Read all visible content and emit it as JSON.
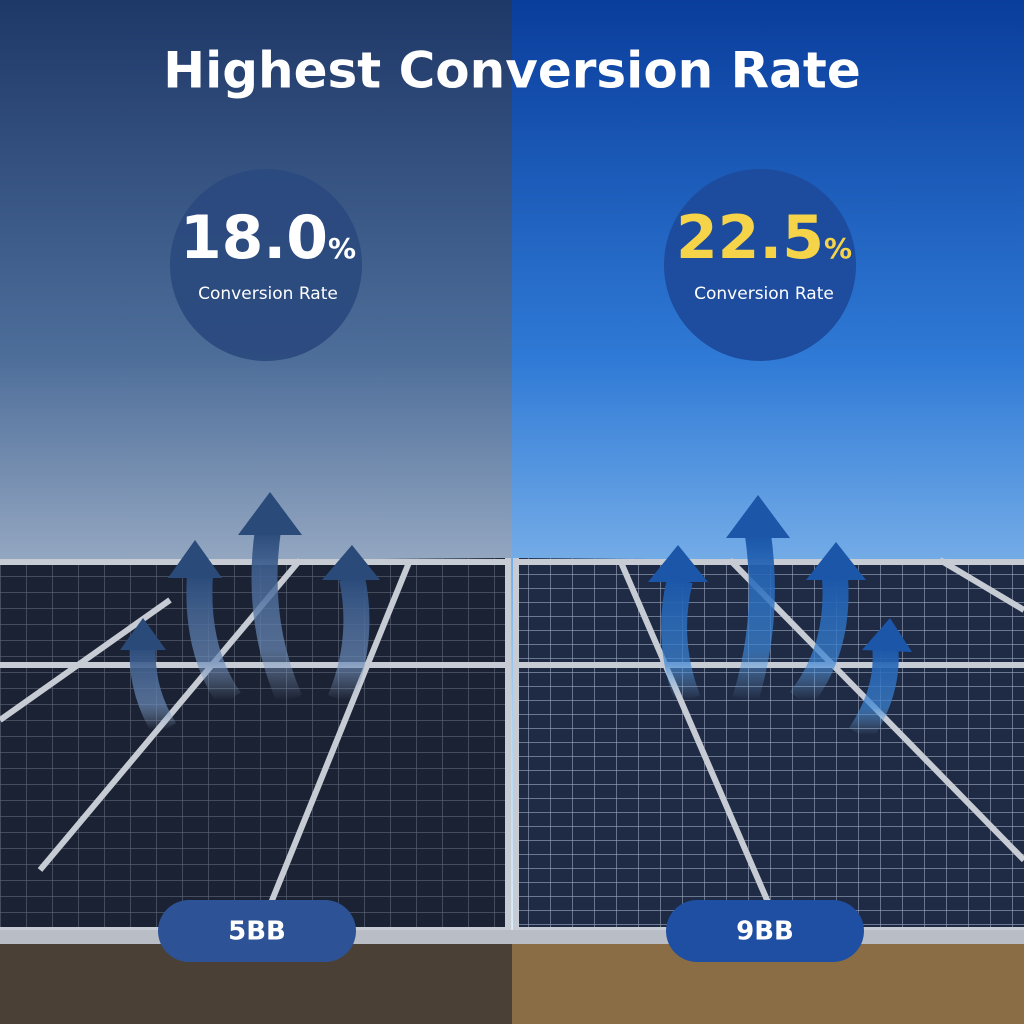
{
  "title": "Highest Conversion Rate",
  "panels": [
    {
      "rate": "18.0",
      "unit": "%",
      "caption": "Conversion Rate",
      "badge": "5BB"
    },
    {
      "rate": "22.5",
      "unit": "%",
      "caption": "Conversion Rate",
      "badge": "9BB"
    }
  ]
}
